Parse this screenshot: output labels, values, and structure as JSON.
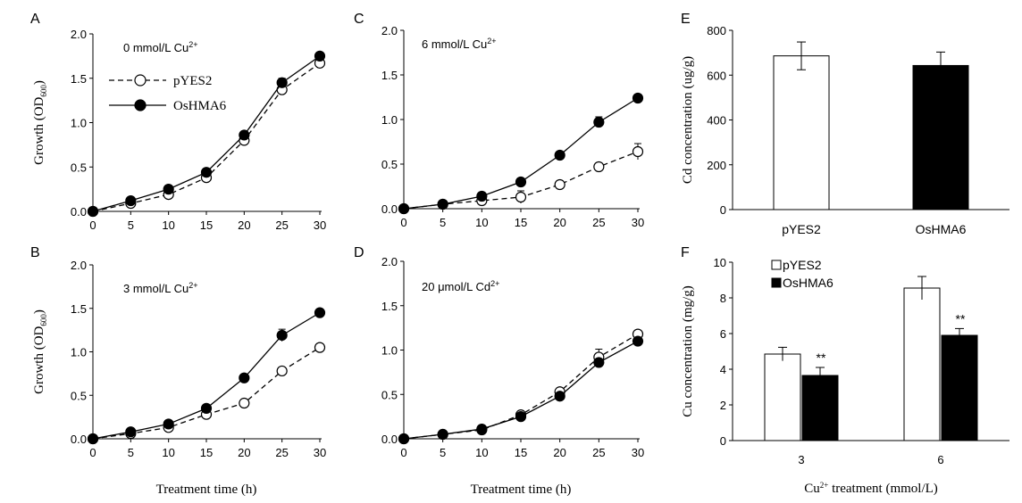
{
  "figure": {
    "shared_xlabel": "Treatment time (h)"
  },
  "chart_data": [
    {
      "panel": "A",
      "type": "line",
      "condition": "0 mmol/L Cu",
      "condition_ion": "2+",
      "ylabel": "Growth (OD",
      "ylabel_sub": "600",
      "ylabel_end": ")",
      "xlabel": "",
      "x": [
        0,
        5,
        10,
        15,
        20,
        25,
        30
      ],
      "xlim": [
        0,
        30
      ],
      "ylim": [
        0,
        2.0
      ],
      "xticks": [
        "0",
        "5",
        "10",
        "15",
        "20",
        "25",
        "30"
      ],
      "yticks": [
        "0.0",
        "0.5",
        "1.0",
        "1.5",
        "2.0"
      ],
      "legend": "inside-top-left",
      "series": [
        {
          "name": "pYES2",
          "style": "dashed-open",
          "values": [
            0.0,
            0.09,
            0.19,
            0.38,
            0.8,
            1.37,
            1.67
          ],
          "err": [
            0,
            0.01,
            0.02,
            0.02,
            0.03,
            0.04,
            0.06
          ]
        },
        {
          "name": "OsHMA6",
          "style": "solid-filled",
          "values": [
            0.0,
            0.12,
            0.25,
            0.44,
            0.86,
            1.45,
            1.75
          ],
          "err": [
            0,
            0.01,
            0.02,
            0.02,
            0.03,
            0.05,
            0.04
          ]
        }
      ]
    },
    {
      "panel": "B",
      "type": "line",
      "condition": "3 mmol/L Cu",
      "condition_ion": "2+",
      "ylabel": "Growth (OD",
      "ylabel_sub": "600",
      "ylabel_end": ")",
      "xlabel": "Treatment time (h)",
      "x": [
        0,
        5,
        10,
        15,
        20,
        25,
        30
      ],
      "xlim": [
        0,
        30
      ],
      "ylim": [
        0,
        2.0
      ],
      "xticks": [
        "0",
        "5",
        "10",
        "15",
        "20",
        "25",
        "30"
      ],
      "yticks": [
        "0.0",
        "0.5",
        "1.0",
        "1.5",
        "2.0"
      ],
      "series": [
        {
          "name": "pYES2",
          "style": "dashed-open",
          "values": [
            0.0,
            0.06,
            0.13,
            0.28,
            0.41,
            0.78,
            1.05
          ],
          "err": [
            0,
            0.01,
            0.02,
            0.02,
            0.02,
            0.03,
            0.03
          ]
        },
        {
          "name": "OsHMA6",
          "style": "solid-filled",
          "values": [
            0.0,
            0.08,
            0.17,
            0.35,
            0.7,
            1.19,
            1.45
          ],
          "err": [
            0,
            0.01,
            0.02,
            0.02,
            0.03,
            0.07,
            0.03
          ]
        }
      ]
    },
    {
      "panel": "C",
      "type": "line",
      "condition": "6 mmol/L Cu",
      "condition_ion": "2+",
      "ylabel": "",
      "xlabel": "",
      "x": [
        0,
        5,
        10,
        15,
        20,
        25,
        30
      ],
      "xlim": [
        0,
        30
      ],
      "ylim": [
        0,
        2.0
      ],
      "xticks": [
        "0",
        "5",
        "10",
        "15",
        "20",
        "25",
        "30"
      ],
      "yticks": [
        "0.0",
        "0.5",
        "1.0",
        "1.5",
        "2.0"
      ],
      "series": [
        {
          "name": "pYES2",
          "style": "dashed-open",
          "values": [
            0.0,
            0.05,
            0.09,
            0.13,
            0.27,
            0.47,
            0.64
          ],
          "err": [
            0,
            0.01,
            0.01,
            0.07,
            0.02,
            0.03,
            0.09
          ]
        },
        {
          "name": "OsHMA6",
          "style": "solid-filled",
          "values": [
            0.0,
            0.05,
            0.14,
            0.3,
            0.6,
            0.97,
            1.24
          ],
          "err": [
            0,
            0.01,
            0.02,
            0.02,
            0.03,
            0.06,
            0.03
          ]
        }
      ]
    },
    {
      "panel": "D",
      "type": "line",
      "condition": "20 μmol/L Cd",
      "condition_ion": "2+",
      "ylabel": "",
      "xlabel": "Treatment time (h)",
      "x": [
        0,
        5,
        10,
        15,
        20,
        25,
        30
      ],
      "xlim": [
        0,
        30
      ],
      "ylim": [
        0,
        2.0
      ],
      "xticks": [
        "0",
        "5",
        "10",
        "15",
        "20",
        "25",
        "30"
      ],
      "yticks": [
        "0.0",
        "0.5",
        "1.0",
        "1.5",
        "2.0"
      ],
      "series": [
        {
          "name": "pYES2",
          "style": "dashed-open",
          "values": [
            0.0,
            0.05,
            0.1,
            0.27,
            0.53,
            0.92,
            1.18
          ],
          "err": [
            0,
            0.01,
            0.01,
            0.02,
            0.03,
            0.09,
            0.03
          ]
        },
        {
          "name": "OsHMA6",
          "style": "solid-filled",
          "values": [
            0.0,
            0.05,
            0.11,
            0.25,
            0.48,
            0.86,
            1.1
          ],
          "err": [
            0,
            0.01,
            0.01,
            0.02,
            0.03,
            0.03,
            0.03
          ]
        }
      ]
    },
    {
      "panel": "E",
      "type": "bar",
      "ylabel": "Cd concentration (ug/g)",
      "xlabel": "",
      "categories": [
        "pYES2",
        "OsHMA6"
      ],
      "ylim": [
        0,
        800
      ],
      "yticks": [
        "0",
        "200",
        "400",
        "600",
        "800"
      ],
      "series": [
        {
          "values": [
            686,
            643
          ],
          "err": [
            62,
            60
          ],
          "fills": [
            "#ffffff",
            "#000000"
          ]
        }
      ]
    },
    {
      "panel": "F",
      "type": "bar",
      "ylabel": "Cu concentration (mg/g)",
      "xlabel": "Cu",
      "xlabel_sup": "2+",
      "xlabel_end": " treatment (mmol/L)",
      "categories": [
        "3",
        "6"
      ],
      "ylim": [
        0,
        10
      ],
      "yticks": [
        "0",
        "2",
        "4",
        "6",
        "8",
        "10"
      ],
      "legend": "top-left",
      "significance": "**",
      "series": [
        {
          "name": "pYES2",
          "fill": "#ffffff",
          "values": [
            4.85,
            8.55
          ],
          "err": [
            0.38,
            0.65
          ]
        },
        {
          "name": "OsHMA6",
          "fill": "#000000",
          "values": [
            3.65,
            5.9
          ],
          "err": [
            0.45,
            0.38
          ]
        }
      ]
    }
  ]
}
